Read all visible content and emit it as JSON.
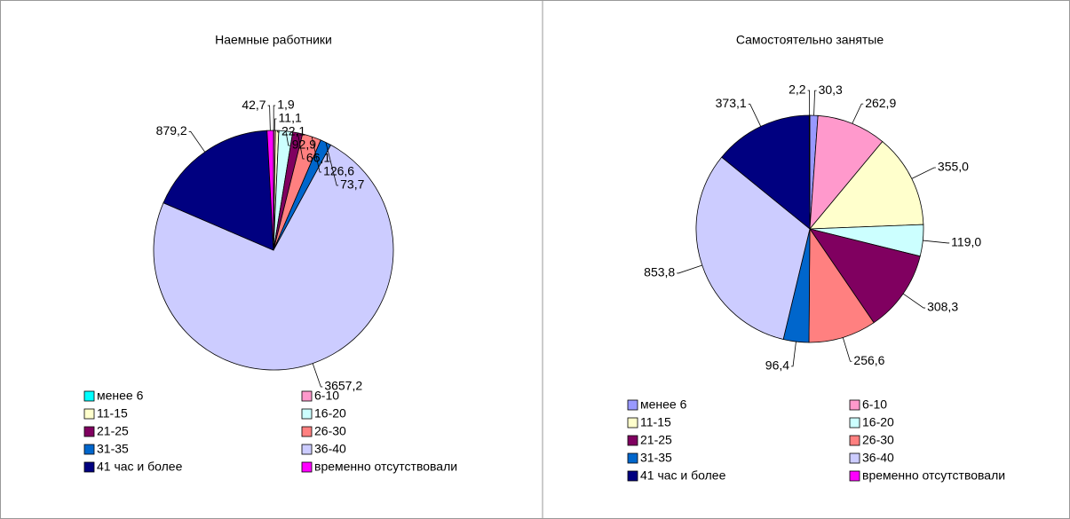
{
  "chart_data": [
    {
      "type": "pie",
      "title": "Наемные работники",
      "categories": [
        "менее 6",
        "6-10",
        "11-15",
        "16-20",
        "21-25",
        "26-30",
        "31-35",
        "36-40",
        "41 час и более",
        "временно отсутствовали"
      ],
      "values": [
        1.9,
        11.1,
        22.1,
        92.9,
        66.1,
        126.6,
        73.7,
        3657.2,
        879.2,
        42.7
      ],
      "value_labels": [
        "1,9",
        "11,1",
        "22,1",
        "92,9",
        "66,1",
        "126,6",
        "73,7",
        "3657,2",
        "879,2",
        "42,7"
      ],
      "colors": [
        "#00ffff",
        "#ff99cc",
        "#ffffcc",
        "#ccffff",
        "#800060",
        "#ff8080",
        "#0066cc",
        "#ccccff",
        "#000080",
        "#ff00ff"
      ]
    },
    {
      "type": "pie",
      "title": "Самостоятельно занятые",
      "categories": [
        "менее 6",
        "6-10",
        "11-15",
        "16-20",
        "21-25",
        "26-30",
        "31-35",
        "36-40",
        "41 час и более",
        "временно отсутствовали"
      ],
      "values": [
        30.3,
        262.9,
        355.0,
        119.0,
        308.3,
        256.6,
        96.4,
        853.8,
        373.1,
        2.2
      ],
      "value_labels": [
        "30,3",
        "262,9",
        "355,0",
        "119,0",
        "308,3",
        "256,6",
        "96,4",
        "853,8",
        "373,1",
        "2,2"
      ],
      "colors": [
        "#9999ff",
        "#ff99cc",
        "#ffffcc",
        "#ccffff",
        "#800060",
        "#ff8080",
        "#0066cc",
        "#ccccff",
        "#000080",
        "#ff00ff"
      ]
    }
  ]
}
